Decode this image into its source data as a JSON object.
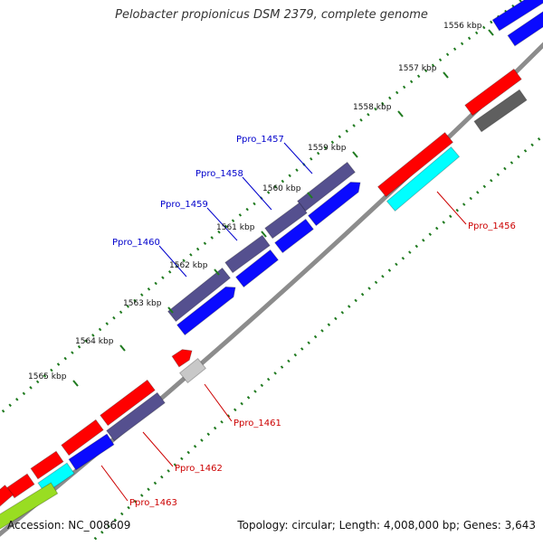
{
  "title": "Pelobacter propionicus DSM 2379, complete genome",
  "footer": {
    "accession": "Accession: NC_008609",
    "summary": "Topology: circular; Length: 4,008,000 bp; Genes: 3,643"
  },
  "colors": {
    "backbone": "#8c8c8c",
    "tick": "#1f7a1f",
    "label_forward": "#0000cc",
    "label_reverse": "#cc0000",
    "red": "#ff0000",
    "cyan": "#00ffff",
    "slate": "#55508f",
    "blue": "#0a0aff",
    "darkgray": "#5f5f5f",
    "lightgray": "#c8c8c8",
    "lime": "#99dd22"
  },
  "ticks": [
    "1556 kbp",
    "1557 kbp",
    "1558 kbp",
    "1559 kbp",
    "1560 kbp",
    "1561 kbp",
    "1562 kbp",
    "1563 kbp",
    "1564 kbp",
    "1565 kbp"
  ],
  "gene_labels": [
    {
      "name": "Ppro_1457",
      "strand": "forward"
    },
    {
      "name": "Ppro_1458",
      "strand": "forward"
    },
    {
      "name": "Ppro_1459",
      "strand": "forward"
    },
    {
      "name": "Ppro_1460",
      "strand": "forward"
    },
    {
      "name": "Ppro_1456",
      "strand": "reverse"
    },
    {
      "name": "Ppro_1461",
      "strand": "reverse"
    },
    {
      "name": "Ppro_1462",
      "strand": "reverse"
    },
    {
      "name": "Ppro_1463",
      "strand": "reverse"
    }
  ]
}
